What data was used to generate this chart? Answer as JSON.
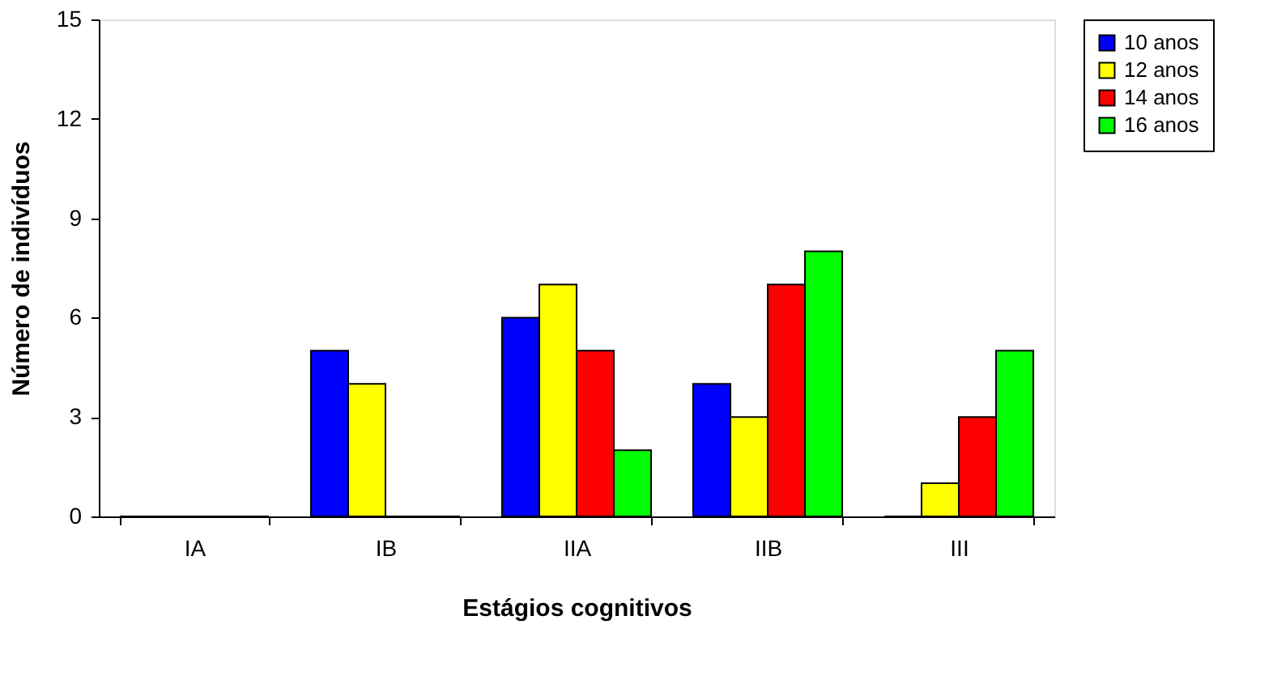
{
  "chart_data": {
    "type": "bar",
    "xlabel": "Estágios cognitivos",
    "ylabel": "Número de indivíduos",
    "categories": [
      "IA",
      "IB",
      "IIA",
      "IIB",
      "III"
    ],
    "series": [
      {
        "name": "10 anos",
        "color": "#0000ff",
        "values": [
          0,
          5,
          6,
          4,
          0
        ]
      },
      {
        "name": "12 anos",
        "color": "#ffff00",
        "values": [
          0,
          4,
          7,
          3,
          1
        ]
      },
      {
        "name": "14 anos",
        "color": "#ff0000",
        "values": [
          0,
          0,
          5,
          7,
          3
        ]
      },
      {
        "name": "16 anos",
        "color": "#00ff00",
        "values": [
          0,
          0,
          2,
          8,
          5
        ]
      }
    ],
    "ylim": [
      0,
      15
    ],
    "yticks": [
      0,
      3,
      6,
      9,
      12,
      15
    ],
    "grid": false,
    "legend": "top right"
  }
}
